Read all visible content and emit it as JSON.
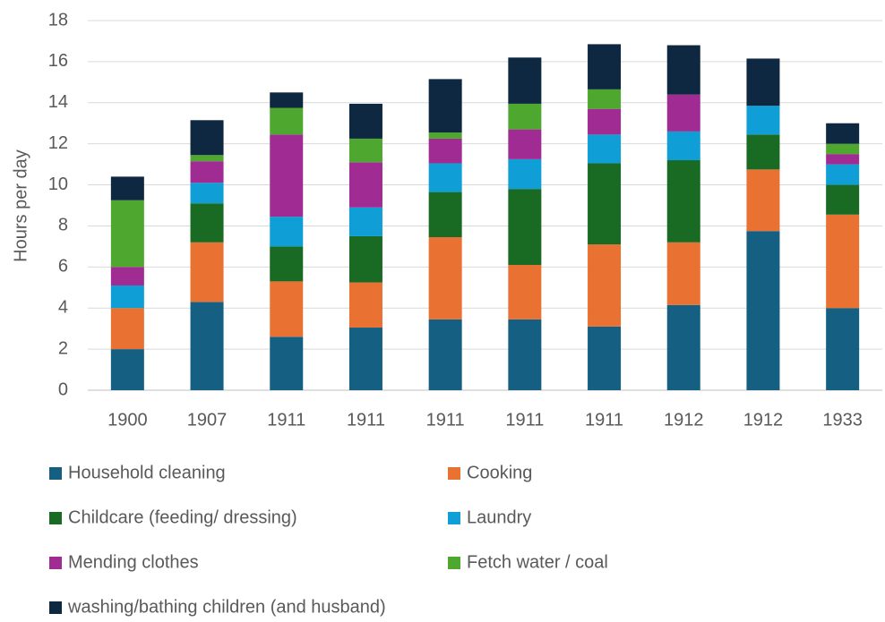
{
  "chart_data": {
    "type": "stacked_bar",
    "y_label": "Hours per day",
    "categories": [
      "1900",
      "1907",
      "1911",
      "1911",
      "1911",
      "1911",
      "1911",
      "1912",
      "1912",
      "1933"
    ],
    "series": [
      {
        "name": "Household cleaning",
        "color": "#156082",
        "values": [
          2.0,
          4.3,
          2.6,
          3.05,
          3.45,
          3.45,
          3.1,
          4.15,
          7.75,
          4.0
        ]
      },
      {
        "name": "Cooking",
        "color": "#e97132",
        "values": [
          2.0,
          2.9,
          2.7,
          2.2,
          4.0,
          2.65,
          4.0,
          3.05,
          3.0,
          4.55
        ]
      },
      {
        "name": "Childcare (feeding/ dressing)",
        "color": "#196b24",
        "values": [
          0,
          1.9,
          1.7,
          2.25,
          2.2,
          3.7,
          3.95,
          4.0,
          1.7,
          1.45
        ]
      },
      {
        "name": "Laundry",
        "color": "#0f9ed5",
        "values": [
          1.1,
          1.0,
          1.45,
          1.4,
          1.4,
          1.45,
          1.4,
          1.4,
          1.4,
          1.0
        ]
      },
      {
        "name": "Mending clothes",
        "color": "#a02b93",
        "values": [
          0.9,
          1.05,
          4.0,
          2.2,
          1.2,
          1.45,
          1.25,
          1.8,
          0,
          0.5
        ]
      },
      {
        "name": "Fetch water / coal",
        "color": "#4ea72e",
        "values": [
          3.25,
          0.3,
          1.3,
          1.15,
          0.3,
          1.25,
          0.95,
          0,
          0,
          0.5
        ]
      },
      {
        "name": "washing/bathing children (and husband)",
        "color": "#0e2841",
        "values": [
          1.15,
          1.7,
          0.75,
          1.7,
          2.6,
          2.25,
          2.2,
          2.4,
          2.3,
          1.0
        ]
      }
    ],
    "ylim": [
      0,
      18
    ],
    "yticks": [
      0,
      2,
      4,
      6,
      8,
      10,
      12,
      14,
      16,
      18
    ],
    "grid": true,
    "legend": "bottom"
  }
}
